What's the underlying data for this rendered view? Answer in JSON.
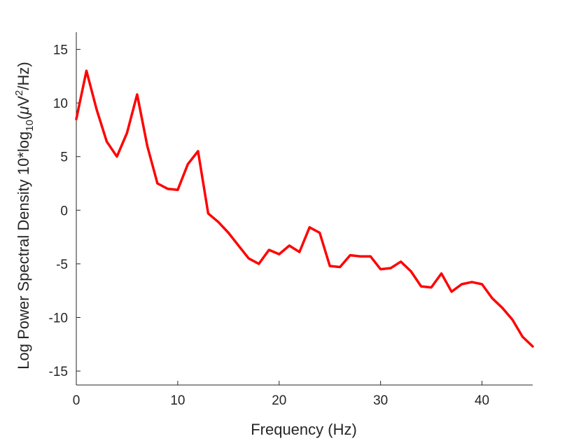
{
  "chart_data": {
    "type": "line",
    "xlabel": "Frequency (Hz)",
    "ylabel_parts": {
      "prefix": "Log Power Spectral Density 10*log",
      "subscript": "10",
      "unit_open": "(",
      "mu": "μ",
      "unit_base": "V",
      "superscript": "2",
      "unit_close": "/Hz)"
    },
    "xlim": [
      0,
      45
    ],
    "ylim": [
      -16.3,
      16.6
    ],
    "xticks": [
      0,
      10,
      20,
      30,
      40
    ],
    "yticks": [
      15,
      10,
      5,
      0,
      -5,
      -10,
      -15
    ],
    "grid": false,
    "line_color": "#ff0000",
    "x": [
      0,
      1,
      2,
      3,
      4,
      5,
      6,
      7,
      8,
      9,
      10,
      11,
      12,
      13,
      14,
      15,
      16,
      17,
      18,
      19,
      20,
      21,
      22,
      23,
      24,
      25,
      26,
      27,
      28,
      29,
      30,
      31,
      32,
      33,
      34,
      35,
      36,
      37,
      38,
      39,
      40,
      41,
      42,
      43,
      44,
      45
    ],
    "series": [
      {
        "values": [
          8.5,
          13.0,
          9.4,
          6.4,
          5.0,
          7.2,
          10.8,
          6.0,
          2.5,
          2.0,
          1.9,
          4.3,
          5.5,
          -0.3,
          -1.1,
          -2.1,
          -3.3,
          -4.5,
          -5.0,
          -3.7,
          -4.1,
          -3.3,
          -3.9,
          -1.6,
          -2.1,
          -5.2,
          -5.3,
          -4.2,
          -4.3,
          -4.3,
          -5.5,
          -5.4,
          -4.8,
          -5.7,
          -7.1,
          -7.2,
          -5.9,
          -7.6,
          -6.9,
          -6.7,
          -6.9,
          -8.2,
          -9.1,
          -10.2,
          -11.8,
          -12.7
        ]
      }
    ]
  }
}
